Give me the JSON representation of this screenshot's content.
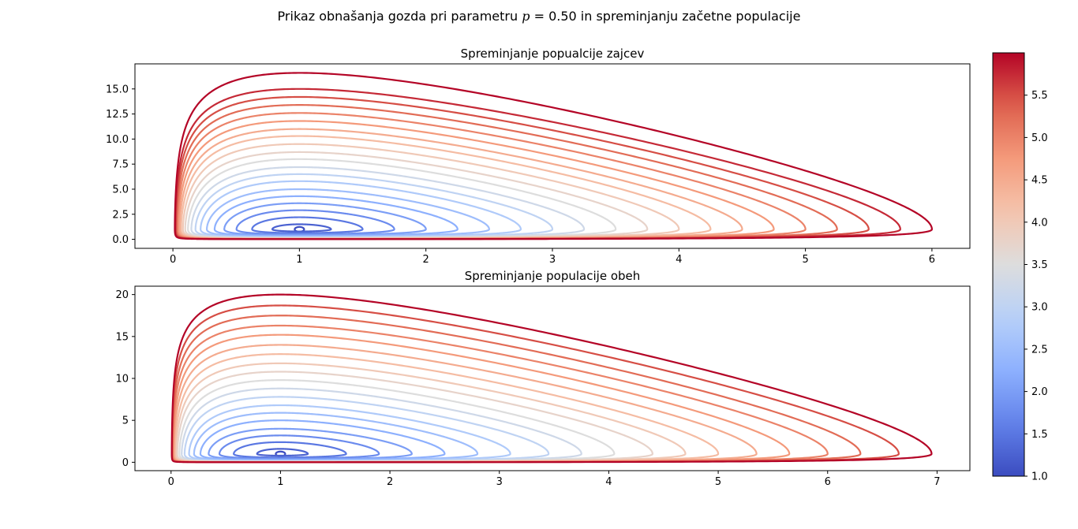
{
  "suptitle": {
    "before": "Prikaz obnašanja gozda pri parametru ",
    "var": "p",
    "eq": " = 0.50",
    "after": " in spreminjanju začetne populacije"
  },
  "chart_data": [
    {
      "type": "line",
      "title": "Spreminjanje popualcije zajcev",
      "xlabel": "",
      "ylabel": "",
      "xlim": [
        -0.3,
        6.3
      ],
      "ylim": [
        -0.9,
        17.5
      ],
      "xticks": [
        "0",
        "1",
        "2",
        "3",
        "4",
        "5",
        "6"
      ],
      "xtick_values": [
        0,
        1,
        2,
        3,
        4,
        5,
        6
      ],
      "yticks": [
        "0.0",
        "2.5",
        "5.0",
        "7.5",
        "10.0",
        "12.5",
        "15.0"
      ],
      "ytick_values": [
        0,
        2.5,
        5,
        7.5,
        10,
        12.5,
        15
      ],
      "grid": false,
      "series_model": "closed Lotka-Volterra orbits around equilibrium (1, 1); one orbit per initial population value",
      "orbit_x_max": [
        1.0,
        1.25,
        1.5,
        1.75,
        2.0,
        2.25,
        2.5,
        2.75,
        3.0,
        3.25,
        3.5,
        3.75,
        4.0,
        4.25,
        4.5,
        4.75,
        5.0,
        5.25,
        5.5,
        5.75,
        6.0
      ],
      "orbit_y_max": [
        1.0,
        1.5,
        2.2,
        2.9,
        3.6,
        4.3,
        5.0,
        5.8,
        6.5,
        7.2,
        8.0,
        8.7,
        9.5,
        10.3,
        11.0,
        11.8,
        12.6,
        13.4,
        14.2,
        15.0,
        16.6
      ],
      "color_values": [
        1.0,
        1.25,
        1.5,
        1.75,
        2.0,
        2.25,
        2.5,
        2.75,
        3.0,
        3.25,
        3.5,
        3.75,
        4.0,
        4.25,
        4.5,
        4.75,
        5.0,
        5.25,
        5.5,
        5.75,
        6.0
      ]
    },
    {
      "type": "line",
      "title": "Spreminjanje populacije obeh",
      "xlabel": "",
      "ylabel": "",
      "xlim": [
        -0.33,
        7.3
      ],
      "ylim": [
        -1.0,
        21.0
      ],
      "xticks": [
        "0",
        "1",
        "2",
        "3",
        "4",
        "5",
        "6",
        "7"
      ],
      "xtick_values": [
        0,
        1,
        2,
        3,
        4,
        5,
        6,
        7
      ],
      "yticks": [
        "0",
        "5",
        "10",
        "15",
        "20"
      ],
      "ytick_values": [
        0,
        5,
        10,
        15,
        20
      ],
      "grid": false,
      "series_model": "closed Lotka-Volterra orbits around equilibrium (1, 1); one orbit per initial population value",
      "orbit_x_max": [
        1.0,
        1.25,
        1.6,
        1.9,
        2.2,
        2.5,
        2.8,
        3.1,
        3.45,
        3.75,
        4.05,
        4.4,
        4.7,
        5.0,
        5.35,
        5.65,
        6.0,
        6.3,
        6.65,
        6.95
      ],
      "orbit_y_max": [
        1.0,
        1.6,
        2.4,
        3.2,
        4.0,
        5.0,
        5.9,
        6.8,
        7.8,
        8.8,
        9.8,
        10.8,
        11.8,
        12.9,
        14.0,
        15.2,
        16.3,
        17.5,
        18.7,
        20.0
      ],
      "color_values": [
        1.0,
        1.25,
        1.5,
        1.75,
        2.0,
        2.25,
        2.5,
        2.75,
        3.0,
        3.25,
        3.5,
        3.75,
        4.0,
        4.25,
        4.5,
        4.75,
        5.0,
        5.25,
        5.5,
        6.0
      ]
    },
    {
      "type": "colorbar",
      "colormap": "coolwarm",
      "range": [
        1.0,
        6.0
      ],
      "ticks": [
        "1.0",
        "1.5",
        "2.0",
        "2.5",
        "3.0",
        "3.5",
        "4.0",
        "4.5",
        "5.0",
        "5.5"
      ],
      "tick_values": [
        1.0,
        1.5,
        2.0,
        2.5,
        3.0,
        3.5,
        4.0,
        4.5,
        5.0,
        5.5
      ]
    }
  ],
  "colors": {
    "cool_end": "#3b4cc0",
    "mid": "#dddddd",
    "warm_end": "#b40426",
    "axes": "#000000"
  }
}
